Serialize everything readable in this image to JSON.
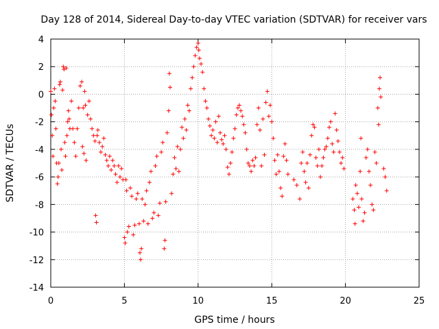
{
  "chart_data": {
    "type": "scatter",
    "title": "Day 128 of 2014, Sidereal Day-to-day VTEC variation (SDTVAR) for receiver vars",
    "xlabel": "GPS time / hours",
    "ylabel": "SDTVAR / TECUs",
    "xlim": [
      0,
      25
    ],
    "ylim": [
      -14,
      4
    ],
    "xticks": [
      0,
      5,
      10,
      15,
      20,
      25
    ],
    "yticks": [
      -14,
      -12,
      -10,
      -8,
      -6,
      -4,
      -2,
      0,
      2,
      4
    ],
    "grid": true,
    "marker": "+",
    "colors": {
      "marker": "#ff0000",
      "grid": "#a0a0a0",
      "axis": "#000000"
    },
    "series": [
      {
        "name": "vars",
        "points": [
          [
            0.0,
            0.2
          ],
          [
            0.05,
            -1.5
          ],
          [
            0.1,
            -3.0
          ],
          [
            0.15,
            -4.5
          ],
          [
            0.2,
            -1.0
          ],
          [
            0.25,
            0.4
          ],
          [
            0.3,
            -0.5
          ],
          [
            0.35,
            -2.5
          ],
          [
            0.4,
            -5.0
          ],
          [
            0.45,
            -6.5
          ],
          [
            0.5,
            -6.0
          ],
          [
            0.55,
            -5.0
          ],
          [
            0.6,
            0.7
          ],
          [
            0.65,
            0.9
          ],
          [
            0.7,
            -4.0
          ],
          [
            0.75,
            -5.5
          ],
          [
            0.8,
            0.3
          ],
          [
            0.85,
            2.0
          ],
          [
            0.9,
            1.8
          ],
          [
            0.95,
            -3.5
          ],
          [
            1.0,
            -4.5
          ],
          [
            1.05,
            1.9
          ],
          [
            1.1,
            -3.0
          ],
          [
            1.15,
            -2.0
          ],
          [
            1.2,
            -1.2
          ],
          [
            1.25,
            -1.8
          ],
          [
            1.3,
            -2.5
          ],
          [
            1.4,
            -0.5
          ],
          [
            1.5,
            -2.5
          ],
          [
            1.6,
            -3.5
          ],
          [
            1.7,
            -4.5
          ],
          [
            1.8,
            -2.5
          ],
          [
            1.9,
            -1.0
          ],
          [
            2.0,
            0.6
          ],
          [
            2.1,
            0.9
          ],
          [
            2.15,
            -3.8
          ],
          [
            2.2,
            -1.0
          ],
          [
            2.25,
            -4.3
          ],
          [
            2.3,
            0.2
          ],
          [
            2.35,
            -0.8
          ],
          [
            2.4,
            -4.8
          ],
          [
            2.5,
            -1.5
          ],
          [
            2.6,
            -0.5
          ],
          [
            2.7,
            -1.8
          ],
          [
            2.8,
            -2.5
          ],
          [
            2.9,
            -3.0
          ],
          [
            3.0,
            -3.4
          ],
          [
            3.05,
            -8.8
          ],
          [
            3.1,
            -9.3
          ],
          [
            3.15,
            -3.0
          ],
          [
            3.2,
            -2.6
          ],
          [
            3.3,
            -3.5
          ],
          [
            3.4,
            -4.2
          ],
          [
            3.5,
            -3.8
          ],
          [
            3.6,
            -3.2
          ],
          [
            3.7,
            -4.4
          ],
          [
            3.8,
            -4.8
          ],
          [
            3.9,
            -5.2
          ],
          [
            4.0,
            -4.5
          ],
          [
            4.1,
            -5.5
          ],
          [
            4.2,
            -4.8
          ],
          [
            4.3,
            -5.2
          ],
          [
            4.4,
            -5.8
          ],
          [
            4.5,
            -6.4
          ],
          [
            4.6,
            -5.2
          ],
          [
            4.7,
            -6.0
          ],
          [
            4.8,
            -5.4
          ],
          [
            4.9,
            -6.2
          ],
          [
            5.0,
            -10.4
          ],
          [
            5.05,
            -10.8
          ],
          [
            5.1,
            -6.2
          ],
          [
            5.15,
            -7.0
          ],
          [
            5.2,
            -10.0
          ],
          [
            5.3,
            -9.6
          ],
          [
            5.4,
            -6.8
          ],
          [
            5.5,
            -7.4
          ],
          [
            5.6,
            -10.2
          ],
          [
            5.7,
            -9.5
          ],
          [
            5.8,
            -7.6
          ],
          [
            5.9,
            -7.2
          ],
          [
            6.0,
            -9.4
          ],
          [
            6.05,
            -11.5
          ],
          [
            6.1,
            -12.0
          ],
          [
            6.15,
            -11.2
          ],
          [
            6.2,
            -7.6
          ],
          [
            6.3,
            -9.2
          ],
          [
            6.4,
            -8.0
          ],
          [
            6.5,
            -7.0
          ],
          [
            6.6,
            -9.4
          ],
          [
            6.7,
            -6.4
          ],
          [
            6.8,
            -5.6
          ],
          [
            6.9,
            -9.0
          ],
          [
            7.0,
            -8.6
          ],
          [
            7.1,
            -5.2
          ],
          [
            7.2,
            -4.5
          ],
          [
            7.3,
            -8.8
          ],
          [
            7.4,
            -7.9
          ],
          [
            7.5,
            -4.2
          ],
          [
            7.6,
            -3.5
          ],
          [
            7.7,
            -11.2
          ],
          [
            7.75,
            -10.6
          ],
          [
            7.8,
            -7.8
          ],
          [
            7.9,
            -2.8
          ],
          [
            8.0,
            -1.2
          ],
          [
            8.05,
            1.5
          ],
          [
            8.1,
            0.5
          ],
          [
            8.2,
            -7.2
          ],
          [
            8.3,
            -5.8
          ],
          [
            8.4,
            -4.6
          ],
          [
            8.5,
            -5.4
          ],
          [
            8.6,
            -3.8
          ],
          [
            8.7,
            -5.6
          ],
          [
            8.8,
            -4.0
          ],
          [
            8.9,
            -2.4
          ],
          [
            9.0,
            -3.2
          ],
          [
            9.1,
            -1.8
          ],
          [
            9.2,
            -2.6
          ],
          [
            9.3,
            -0.8
          ],
          [
            9.4,
            -1.2
          ],
          [
            9.5,
            0.4
          ],
          [
            9.6,
            1.2
          ],
          [
            9.7,
            2.0
          ],
          [
            9.8,
            2.8
          ],
          [
            9.9,
            3.4
          ],
          [
            10.0,
            3.7
          ],
          [
            10.05,
            3.2
          ],
          [
            10.1,
            2.6
          ],
          [
            10.2,
            2.2
          ],
          [
            10.3,
            1.6
          ],
          [
            10.4,
            0.4
          ],
          [
            10.5,
            -0.5
          ],
          [
            10.6,
            -1.0
          ],
          [
            10.7,
            -1.8
          ],
          [
            10.8,
            -2.3
          ],
          [
            10.9,
            -3.0
          ],
          [
            11.0,
            -2.6
          ],
          [
            11.1,
            -3.2
          ],
          [
            11.2,
            -2.0
          ],
          [
            11.3,
            -3.5
          ],
          [
            11.4,
            -1.6
          ],
          [
            11.5,
            -2.8
          ],
          [
            11.6,
            -3.3
          ],
          [
            11.7,
            -3.6
          ],
          [
            11.8,
            -3.0
          ],
          [
            11.9,
            -4.0
          ],
          [
            12.0,
            -5.3
          ],
          [
            12.1,
            -5.8
          ],
          [
            12.2,
            -5.0
          ],
          [
            12.3,
            -4.2
          ],
          [
            12.4,
            -3.2
          ],
          [
            12.5,
            -2.5
          ],
          [
            12.6,
            -1.5
          ],
          [
            12.7,
            -1.0
          ],
          [
            12.8,
            -0.8
          ],
          [
            12.9,
            -1.2
          ],
          [
            13.0,
            -1.6
          ],
          [
            13.1,
            -2.2
          ],
          [
            13.2,
            -2.8
          ],
          [
            13.3,
            -4.0
          ],
          [
            13.4,
            -5.0
          ],
          [
            13.5,
            -5.2
          ],
          [
            13.6,
            -5.6
          ],
          [
            13.7,
            -4.8
          ],
          [
            13.8,
            -5.2
          ],
          [
            13.9,
            -4.6
          ],
          [
            14.0,
            -2.2
          ],
          [
            14.1,
            -1.0
          ],
          [
            14.2,
            -2.6
          ],
          [
            14.3,
            -5.2
          ],
          [
            14.4,
            -1.8
          ],
          [
            14.5,
            -4.4
          ],
          [
            14.6,
            -0.6
          ],
          [
            14.7,
            0.2
          ],
          [
            14.8,
            -1.6
          ],
          [
            14.9,
            -0.8
          ],
          [
            15.0,
            -2.0
          ],
          [
            15.1,
            -3.2
          ],
          [
            15.2,
            -4.8
          ],
          [
            15.3,
            -5.8
          ],
          [
            15.4,
            -4.4
          ],
          [
            15.5,
            -5.6
          ],
          [
            15.6,
            -6.8
          ],
          [
            15.7,
            -7.4
          ],
          [
            15.8,
            -4.5
          ],
          [
            15.9,
            -3.6
          ],
          [
            16.0,
            -4.8
          ],
          [
            16.1,
            -5.8
          ],
          [
            16.5,
            -6.2
          ],
          [
            16.7,
            -6.6
          ],
          [
            16.9,
            -7.6
          ],
          [
            17.0,
            -5.0
          ],
          [
            17.1,
            -4.2
          ],
          [
            17.2,
            -5.6
          ],
          [
            17.3,
            -6.4
          ],
          [
            17.4,
            -5.0
          ],
          [
            17.5,
            -6.8
          ],
          [
            17.6,
            -4.4
          ],
          [
            17.7,
            -3.0
          ],
          [
            17.8,
            -2.2
          ],
          [
            17.9,
            -2.4
          ],
          [
            18.0,
            -4.6
          ],
          [
            18.1,
            -5.2
          ],
          [
            18.2,
            -4.0
          ],
          [
            18.3,
            -6.0
          ],
          [
            18.4,
            -5.2
          ],
          [
            18.5,
            -4.6
          ],
          [
            18.6,
            -4.0
          ],
          [
            18.7,
            -3.8
          ],
          [
            18.8,
            -3.2
          ],
          [
            18.9,
            -2.4
          ],
          [
            19.0,
            -2.0
          ],
          [
            19.1,
            -3.6
          ],
          [
            19.2,
            -4.2
          ],
          [
            19.3,
            -1.4
          ],
          [
            19.4,
            -2.6
          ],
          [
            19.5,
            -3.4
          ],
          [
            19.6,
            -4.2
          ],
          [
            19.7,
            -5.0
          ],
          [
            19.8,
            -4.6
          ],
          [
            19.9,
            -5.4
          ],
          [
            20.5,
            -7.6
          ],
          [
            20.6,
            -8.4
          ],
          [
            20.65,
            -9.4
          ],
          [
            20.7,
            -6.6
          ],
          [
            20.8,
            -7.2
          ],
          [
            20.9,
            -8.2
          ],
          [
            21.0,
            -5.6
          ],
          [
            21.05,
            -3.2
          ],
          [
            21.1,
            -7.6
          ],
          [
            21.2,
            -9.2
          ],
          [
            21.3,
            -8.6
          ],
          [
            21.4,
            -4.6
          ],
          [
            21.5,
            -4.0
          ],
          [
            21.6,
            -5.6
          ],
          [
            21.7,
            -6.6
          ],
          [
            21.8,
            -8.0
          ],
          [
            21.9,
            -8.4
          ],
          [
            22.0,
            -4.2
          ],
          [
            22.1,
            -5.0
          ],
          [
            22.2,
            -1.0
          ],
          [
            22.25,
            -2.2
          ],
          [
            22.3,
            0.4
          ],
          [
            22.35,
            1.2
          ],
          [
            22.4,
            -0.2
          ],
          [
            22.6,
            -5.4
          ],
          [
            22.7,
            -6.0
          ],
          [
            22.8,
            -7.0
          ]
        ]
      }
    ]
  }
}
